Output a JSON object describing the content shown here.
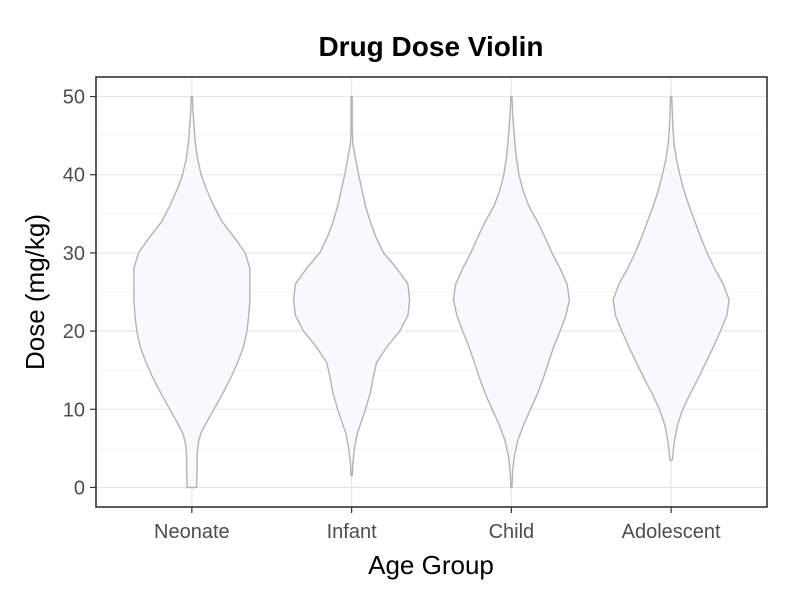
{
  "chart_data": {
    "type": "violin",
    "title": "Drug Dose Violin",
    "xlabel": "Age Group",
    "ylabel": "Dose (mg/kg)",
    "categories": [
      "Neonate",
      "Infant",
      "Child",
      "Adolescent"
    ],
    "ylim": [
      -2.5,
      52.5
    ],
    "yticks": [
      0,
      10,
      20,
      30,
      40,
      50
    ],
    "grid": true,
    "legend": "none",
    "fill_color": "#f8f9fe",
    "stroke_color": "#b3b3b3",
    "violins": [
      {
        "name": "Neonate",
        "density": [
          [
            0,
            0.08
          ],
          [
            2,
            0.09
          ],
          [
            4,
            0.09
          ],
          [
            5,
            0.1
          ],
          [
            6,
            0.12
          ],
          [
            7,
            0.16
          ],
          [
            8,
            0.23
          ],
          [
            10,
            0.38
          ],
          [
            12,
            0.53
          ],
          [
            14,
            0.67
          ],
          [
            16,
            0.79
          ],
          [
            18,
            0.89
          ],
          [
            20,
            0.95
          ],
          [
            22,
            0.98
          ],
          [
            24,
            1.0
          ],
          [
            26,
            1.0
          ],
          [
            28,
            1.0
          ],
          [
            30,
            0.92
          ],
          [
            32,
            0.73
          ],
          [
            34,
            0.52
          ],
          [
            36,
            0.38
          ],
          [
            38,
            0.26
          ],
          [
            40,
            0.16
          ],
          [
            42,
            0.1
          ],
          [
            44,
            0.06
          ],
          [
            46,
            0.04
          ],
          [
            48,
            0.02
          ],
          [
            50,
            0.01
          ]
        ]
      },
      {
        "name": "Infant",
        "density": [
          [
            1.5,
            0.01
          ],
          [
            3,
            0.02
          ],
          [
            5,
            0.05
          ],
          [
            7,
            0.1
          ],
          [
            8,
            0.15
          ],
          [
            10,
            0.24
          ],
          [
            12,
            0.32
          ],
          [
            14,
            0.37
          ],
          [
            16,
            0.43
          ],
          [
            18,
            0.61
          ],
          [
            20,
            0.83
          ],
          [
            22,
            0.97
          ],
          [
            24,
            1.0
          ],
          [
            26,
            0.97
          ],
          [
            28,
            0.78
          ],
          [
            30,
            0.55
          ],
          [
            32,
            0.42
          ],
          [
            34,
            0.32
          ],
          [
            36,
            0.24
          ],
          [
            38,
            0.18
          ],
          [
            40,
            0.12
          ],
          [
            42,
            0.07
          ],
          [
            44,
            0.02
          ],
          [
            46,
            0.01
          ],
          [
            48,
            0.01
          ],
          [
            50,
            0.01
          ]
        ]
      },
      {
        "name": "Child",
        "density": [
          [
            0,
            0.01
          ],
          [
            2,
            0.02
          ],
          [
            4,
            0.05
          ],
          [
            6,
            0.11
          ],
          [
            8,
            0.21
          ],
          [
            10,
            0.33
          ],
          [
            12,
            0.45
          ],
          [
            14,
            0.55
          ],
          [
            16,
            0.64
          ],
          [
            18,
            0.73
          ],
          [
            20,
            0.84
          ],
          [
            22,
            0.94
          ],
          [
            24,
            1.0
          ],
          [
            26,
            0.96
          ],
          [
            28,
            0.84
          ],
          [
            30,
            0.7
          ],
          [
            32,
            0.58
          ],
          [
            34,
            0.45
          ],
          [
            36,
            0.3
          ],
          [
            38,
            0.2
          ],
          [
            40,
            0.13
          ],
          [
            42,
            0.09
          ],
          [
            44,
            0.06
          ],
          [
            46,
            0.04
          ],
          [
            48,
            0.02
          ],
          [
            50,
            0.01
          ]
        ]
      },
      {
        "name": "Adolescent",
        "density": [
          [
            3.5,
            0.02
          ],
          [
            5,
            0.04
          ],
          [
            6,
            0.06
          ],
          [
            8,
            0.11
          ],
          [
            10,
            0.2
          ],
          [
            12,
            0.33
          ],
          [
            14,
            0.47
          ],
          [
            16,
            0.6
          ],
          [
            18,
            0.73
          ],
          [
            20,
            0.85
          ],
          [
            22,
            0.96
          ],
          [
            24,
            1.0
          ],
          [
            26,
            0.9
          ],
          [
            28,
            0.75
          ],
          [
            30,
            0.62
          ],
          [
            32,
            0.51
          ],
          [
            34,
            0.41
          ],
          [
            36,
            0.31
          ],
          [
            38,
            0.22
          ],
          [
            40,
            0.15
          ],
          [
            42,
            0.09
          ],
          [
            44,
            0.05
          ],
          [
            46,
            0.03
          ],
          [
            48,
            0.02
          ],
          [
            50,
            0.01
          ]
        ]
      }
    ]
  }
}
